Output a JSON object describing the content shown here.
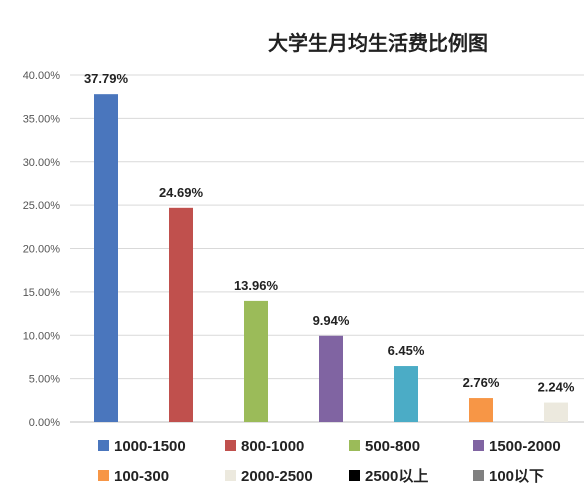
{
  "chart_data": {
    "type": "bar",
    "title": "大学生月均生活费比例图",
    "xlabel": "",
    "ylabel": "",
    "ylim": [
      0,
      40
    ],
    "yticks": [
      "0.00%",
      "5.00%",
      "10.00%",
      "15.00%",
      "20.00%",
      "25.00%",
      "30.00%",
      "35.00%",
      "40.00%"
    ],
    "grid": true,
    "legend_position": "bottom",
    "series": [
      {
        "name": "1000-1500",
        "value": 37.79,
        "label": "37.79%",
        "color": "#4a76bd"
      },
      {
        "name": "800-1000",
        "value": 24.69,
        "label": "24.69%",
        "color": "#c0504d"
      },
      {
        "name": "500-800",
        "value": 13.96,
        "label": "13.96%",
        "color": "#9bbb59"
      },
      {
        "name": "1500-2000",
        "value": 9.94,
        "label": "9.94%",
        "color": "#8064a2"
      },
      {
        "name": "100-300",
        "value": 6.45,
        "label": "6.45%",
        "color": "#4bacc6"
      },
      {
        "name": "2000-2500",
        "value": 2.76,
        "label": "2.76%",
        "color": "#f79646"
      },
      {
        "name": "2500以上",
        "value": 2.24,
        "label": "2.24%",
        "color": "#ece9de"
      },
      {
        "name": "100以下",
        "value": null,
        "label": "",
        "color": "#808080"
      }
    ],
    "legend": [
      {
        "name": "1000-1500",
        "color": "#4a76bd"
      },
      {
        "name": "800-1000",
        "color": "#c0504d"
      },
      {
        "name": "500-800",
        "color": "#9bbb59"
      },
      {
        "name": "1500-2000",
        "color": "#8064a2"
      },
      {
        "name": "100-300",
        "color": "#f79646"
      },
      {
        "name": "2000-2500",
        "color": "#ece9de"
      },
      {
        "name": "2500以上",
        "color": "#000000"
      },
      {
        "name": "100以下",
        "color": "#808080"
      }
    ]
  }
}
